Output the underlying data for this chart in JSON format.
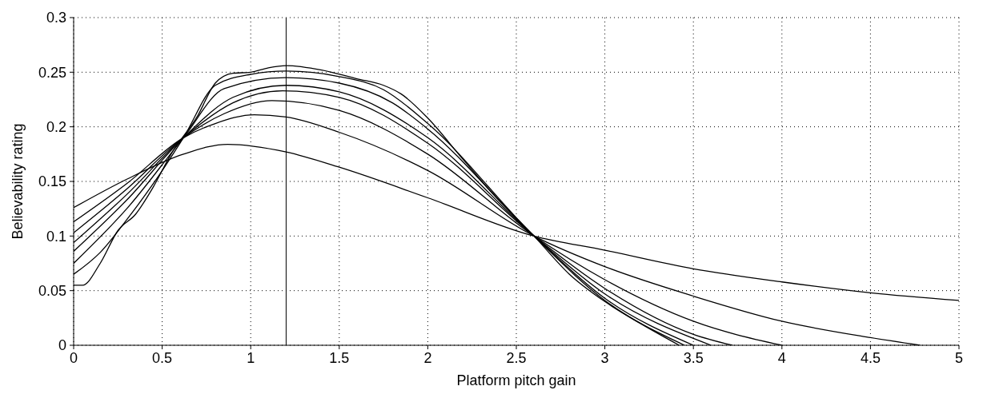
{
  "chart_data": {
    "type": "line",
    "xlabel": "Platform pitch gain",
    "ylabel": "Believability rating",
    "xlim": [
      0,
      5
    ],
    "ylim": [
      0,
      0.3
    ],
    "xticks": [
      0,
      0.5,
      1,
      1.5,
      2,
      2.5,
      3,
      3.5,
      4,
      4.5,
      5
    ],
    "yticks": [
      0,
      0.05,
      0.1,
      0.15,
      0.2,
      0.25,
      0.3
    ],
    "grid": true,
    "legend": false,
    "marker": "none",
    "line_style": "solid",
    "ref_lines": [
      {
        "axis": "x",
        "value": 1.2,
        "color": "#000000"
      }
    ],
    "series": [
      {
        "color": "#000000",
        "x": [
          0,
          0.3,
          0.62,
          0.87,
          1.2,
          1.5,
          2,
          2.6,
          3,
          3.5,
          4,
          4.5,
          5
        ],
        "values": [
          0.126,
          0.152,
          0.175,
          0.184,
          0.177,
          0.163,
          0.135,
          0.1,
          0.087,
          0.07,
          0.058,
          0.048,
          0.041
        ]
      },
      {
        "color": "#000000",
        "x": [
          0,
          0.3,
          0.62,
          0.8,
          1.02,
          1.2,
          1.5,
          2,
          2.6,
          3,
          3.5,
          4,
          4.5,
          4.78
        ],
        "values": [
          0.113,
          0.148,
          0.19,
          0.203,
          0.211,
          0.209,
          0.195,
          0.16,
          0.1,
          0.072,
          0.045,
          0.022,
          0.007,
          0
        ]
      },
      {
        "color": "#000000",
        "x": [
          0,
          0.3,
          0.62,
          0.85,
          1.12,
          1.5,
          2,
          2.6,
          3,
          3.5,
          4
        ],
        "values": [
          0.103,
          0.143,
          0.19,
          0.212,
          0.224,
          0.215,
          0.175,
          0.1,
          0.06,
          0.022,
          0
        ]
      },
      {
        "color": "#000000",
        "x": [
          0,
          0.3,
          0.62,
          0.9,
          1.18,
          1.5,
          2,
          2.6,
          3,
          3.5,
          3.72
        ],
        "values": [
          0.094,
          0.138,
          0.19,
          0.222,
          0.233,
          0.227,
          0.185,
          0.1,
          0.052,
          0.01,
          0
        ]
      },
      {
        "color": "#000000",
        "x": [
          0,
          0.3,
          0.62,
          0.9,
          1.2,
          1.5,
          2,
          2.6,
          3,
          3.6
        ],
        "values": [
          0.086,
          0.133,
          0.19,
          0.227,
          0.238,
          0.232,
          0.19,
          0.1,
          0.047,
          0
        ]
      },
      {
        "color": "#000000",
        "x": [
          0,
          0.3,
          0.62,
          0.85,
          1.2,
          1.5,
          1.8,
          2,
          2.6,
          3,
          3.5
        ],
        "values": [
          0.075,
          0.125,
          0.19,
          0.235,
          0.245,
          0.24,
          0.222,
          0.198,
          0.1,
          0.043,
          0
        ]
      },
      {
        "color": "#000000",
        "x": [
          0,
          0.15,
          0.3,
          0.45,
          0.62,
          0.8,
          1,
          1.2,
          1.5,
          1.75,
          2,
          2.6,
          3,
          3.45
        ],
        "values": [
          0.065,
          0.085,
          0.115,
          0.148,
          0.19,
          0.238,
          0.248,
          0.251,
          0.246,
          0.234,
          0.203,
          0.1,
          0.041,
          0
        ]
      },
      {
        "color": "#000000",
        "x": [
          0,
          0.05,
          0.15,
          0.25,
          0.35,
          0.45,
          0.55,
          0.7,
          0.8,
          0.9,
          1,
          1.1,
          1.2,
          1.4,
          1.6,
          1.75,
          1.85,
          2,
          2.2,
          2.4,
          2.6,
          2.8,
          3,
          3.2,
          3.42
        ],
        "values": [
          0.055,
          0.055,
          0.075,
          0.105,
          0.12,
          0.145,
          0.175,
          0.21,
          0.24,
          0.249,
          0.25,
          0.254,
          0.256,
          0.252,
          0.244,
          0.238,
          0.23,
          0.208,
          0.17,
          0.133,
          0.1,
          0.065,
          0.04,
          0.02,
          0
        ]
      }
    ]
  }
}
